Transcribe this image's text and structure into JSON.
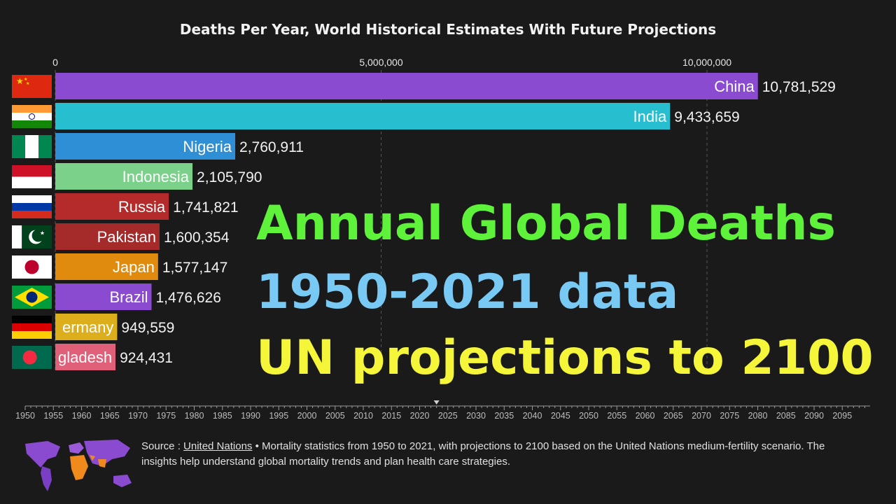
{
  "title": "Deaths Per Year, World Historical Estimates With Future Projections",
  "overlay": {
    "line1": "Annual Global Deaths",
    "line2": "1950-2021 data",
    "line3": "UN projections to 2100"
  },
  "source": {
    "prefix": "Source : ",
    "link": "United Nations",
    "text": " • Mortality statistics from 1950 to 2021, with projections to 2100 based on the United Nations medium-fertility scenario. The insights help understand global mortality trends and plan health care strategies."
  },
  "timeline": {
    "years": [
      "1950",
      "1955",
      "1960",
      "1965",
      "1970",
      "1975",
      "1980",
      "1985",
      "1990",
      "1995",
      "2000",
      "2005",
      "2010",
      "2015",
      "2020",
      "2025",
      "2030",
      "2035",
      "2040",
      "2045",
      "2050",
      "2055",
      "2060",
      "2065",
      "2070",
      "2075",
      "2080",
      "2085",
      "2090",
      "2095"
    ],
    "marker_year": 2023
  },
  "chart_data": {
    "type": "bar",
    "orientation": "horizontal",
    "title": "Deaths Per Year, World Historical Estimates With Future Projections",
    "xlim": [
      0,
      11000000
    ],
    "x_ticks": [
      0,
      5000000,
      10000000
    ],
    "x_tick_labels": [
      "0",
      "5,000,000",
      "10,000,000"
    ],
    "grid": "vertical dashed",
    "categories": [
      "China",
      "India",
      "Nigeria",
      "Indonesia",
      "Russia",
      "Pakistan",
      "Japan",
      "Brazil",
      "Germany",
      "Bangladesh"
    ],
    "display_labels": [
      "China",
      "India",
      "Nigeria",
      "Indonesia",
      "Russia",
      "Pakistan",
      "Japan",
      "Brazil",
      "ermany",
      "gladesh"
    ],
    "values": [
      10781529,
      9433659,
      2760911,
      2105790,
      1741821,
      1600354,
      1577147,
      1476626,
      949559,
      924431
    ],
    "value_labels": [
      "10,781,529",
      "9,433,659",
      "2,760,911",
      "2,105,790",
      "1,741,821",
      "1,600,354",
      "1,577,147",
      "1,476,626",
      "949,559",
      "924,431"
    ],
    "colors": [
      "#8a4bd0",
      "#27bfcf",
      "#2f8fd6",
      "#7bd08a",
      "#b52a2a",
      "#a52a2a",
      "#e08a0e",
      "#8a4bd0",
      "#dcae1c",
      "#e06079"
    ],
    "flag_icons": [
      "china-flag-icon",
      "india-flag-icon",
      "nigeria-flag-icon",
      "indonesia-flag-icon",
      "russia-flag-icon",
      "pakistan-flag-icon",
      "japan-flag-icon",
      "brazil-flag-icon",
      "germany-flag-icon",
      "bangladesh-flag-icon"
    ]
  }
}
